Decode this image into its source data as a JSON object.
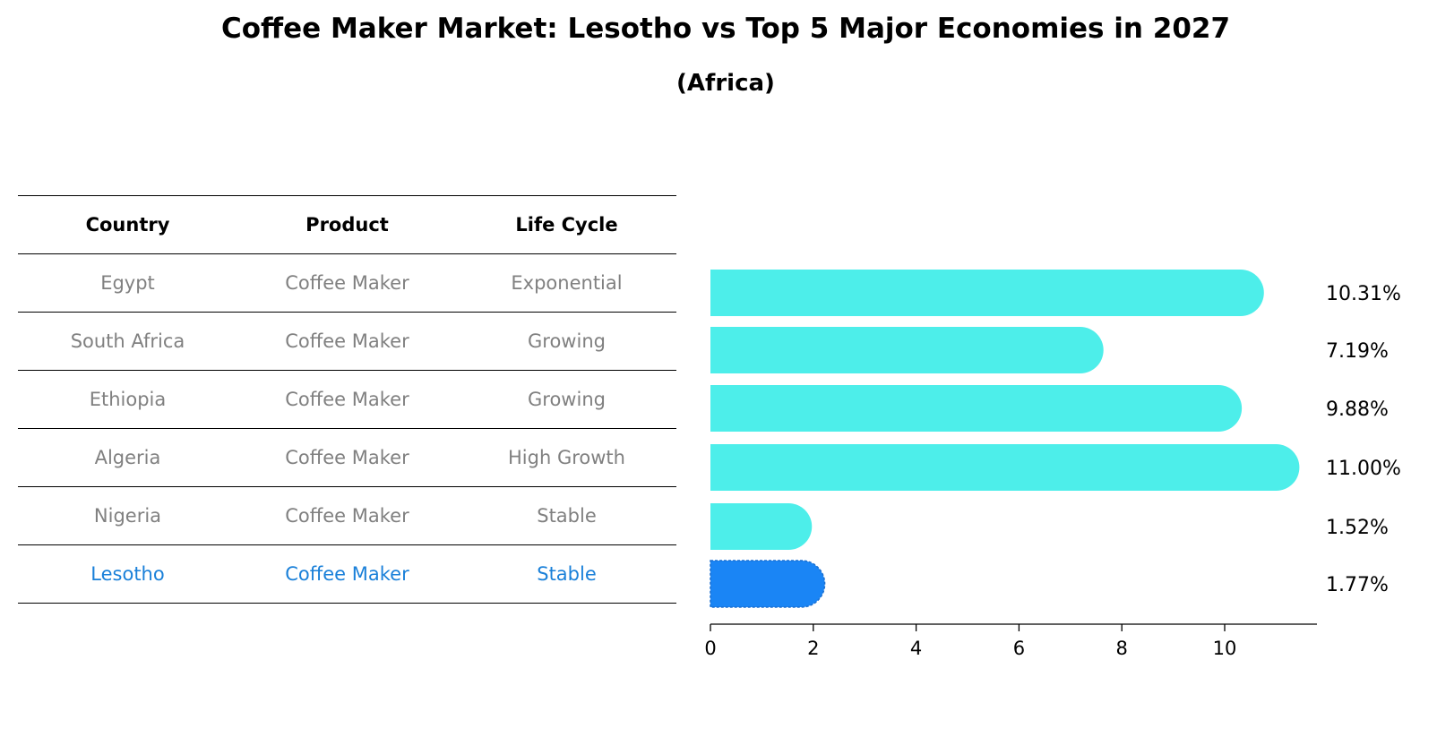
{
  "title": "Coffee Maker Market: Lesotho vs Top 5 Major Economies in 2027",
  "subtitle": "(Africa)",
  "table": {
    "headers": [
      "Country",
      "Product",
      "Life Cycle"
    ],
    "rows": [
      {
        "country": "Egypt",
        "product": "Coffee Maker",
        "life_cycle": "Exponential"
      },
      {
        "country": "South Africa",
        "product": "Coffee Maker",
        "life_cycle": "Growing"
      },
      {
        "country": "Ethiopia",
        "product": "Coffee Maker",
        "life_cycle": "Growing"
      },
      {
        "country": "Algeria",
        "product": "Coffee Maker",
        "life_cycle": "High Growth"
      },
      {
        "country": "Nigeria",
        "product": "Coffee Maker",
        "life_cycle": "Stable"
      },
      {
        "country": "Lesotho",
        "product": "Coffee Maker",
        "life_cycle": "Stable"
      }
    ]
  },
  "colors": {
    "bar": "#4deeea",
    "highlight_bar": "#1a85f5",
    "highlight_text": "#1a80d9",
    "muted_text": "#808080"
  },
  "chart_data": {
    "type": "bar",
    "orientation": "horizontal",
    "categories": [
      "Egypt",
      "South Africa",
      "Ethiopia",
      "Algeria",
      "Nigeria",
      "Lesotho"
    ],
    "values": [
      10.31,
      7.19,
      9.88,
      11.0,
      1.52,
      1.77
    ],
    "value_labels": [
      "10.31%",
      "7.19%",
      "9.88%",
      "11.00%",
      "1.52%",
      "1.77%"
    ],
    "highlight": "Lesotho",
    "xlim": [
      0,
      11.5
    ],
    "xticks": [
      0,
      2,
      4,
      6,
      8,
      10
    ],
    "xlabel": "",
    "ylabel": ""
  }
}
